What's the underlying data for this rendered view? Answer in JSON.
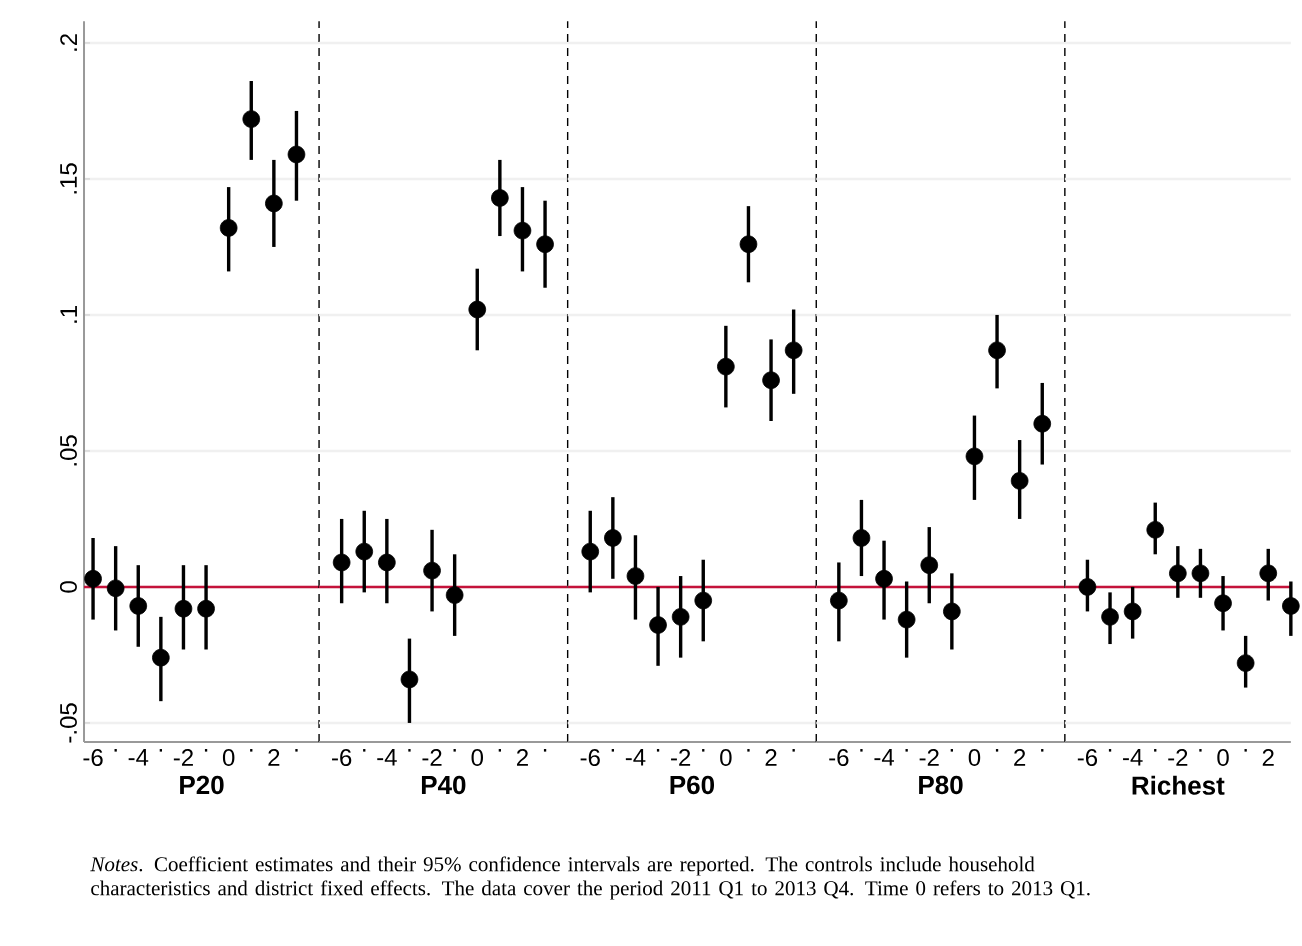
{
  "chart_data": [
    {
      "type": "scatter",
      "xlabel": "P20",
      "x": [
        -6,
        -5,
        -4,
        -3,
        -2,
        -1,
        0,
        1,
        2,
        3
      ],
      "values": [
        0.003,
        -0.0005,
        -0.007,
        -0.026,
        -0.008,
        -0.008,
        0.132,
        0.172,
        0.141,
        0.159
      ],
      "errors": [
        [
          -0.012,
          0.018
        ],
        [
          -0.016,
          0.015
        ],
        [
          -0.022,
          0.008
        ],
        [
          -0.042,
          -0.011
        ],
        [
          -0.023,
          0.008
        ],
        [
          -0.023,
          0.008
        ],
        [
          0.116,
          0.147
        ],
        [
          0.157,
          0.186
        ],
        [
          0.125,
          0.157
        ],
        [
          0.142,
          0.175
        ]
      ],
      "color": "#000000",
      "xlim": [
        -6.4,
        4
      ],
      "ylim": [
        -0.057,
        0.208
      ],
      "xticks": [
        {
          "value": -6,
          "label": "-6"
        },
        {
          "value": -5,
          "label": "."
        },
        {
          "value": -4,
          "label": "-4"
        },
        {
          "value": -3,
          "label": "."
        },
        {
          "value": -2,
          "label": "-2"
        },
        {
          "value": -1,
          "label": "."
        },
        {
          "value": 0,
          "label": "0"
        },
        {
          "value": 1,
          "label": "."
        },
        {
          "value": 2,
          "label": "2"
        },
        {
          "value": 3,
          "label": "."
        }
      ],
      "yticks": [
        {
          "value": -0.05,
          "label": "-.05"
        },
        {
          "value": 0,
          "label": "0"
        },
        {
          "value": 0.05,
          "label": ".05"
        },
        {
          "value": 0.1,
          "label": ".1"
        },
        {
          "value": 0.15,
          "label": ".15"
        },
        {
          "value": 0.2,
          "label": ".2"
        }
      ],
      "grid": "y",
      "ref_lines": [
        {
          "axis": "y",
          "value": 0,
          "color": "#c4123a"
        },
        {
          "axis": "x",
          "value": 4,
          "color": "#000000",
          "line_style": "dashed"
        }
      ],
      "annotations": [
        "*Notes*. Coefficient estimates and their 95% confidence intervals are reported. The controls include household characteristics and district fixed effects. The data cover the period 2011 Q1 to 2013 Q4. Time 0 refers to 2013 Q1."
      ]
    },
    {
      "type": "scatter",
      "xlabel": "P40",
      "x": [
        -6,
        -5,
        -4,
        -3,
        -2,
        -1,
        0,
        1,
        2,
        3
      ],
      "values": [
        0.009,
        0.013,
        0.009,
        -0.034,
        0.006,
        -0.003,
        0.102,
        0.143,
        0.131,
        0.126
      ],
      "errors": [
        [
          -0.006,
          0.025
        ],
        [
          -0.002,
          0.028
        ],
        [
          -0.006,
          0.025
        ],
        [
          -0.05,
          -0.019
        ],
        [
          -0.009,
          0.021
        ],
        [
          -0.018,
          0.012
        ],
        [
          0.087,
          0.117
        ],
        [
          0.129,
          0.157
        ],
        [
          0.116,
          0.147
        ],
        [
          0.11,
          0.142
        ]
      ],
      "color": "#000000",
      "xlim": [
        -7,
        4
      ],
      "ylim": [
        -0.057,
        0.208
      ],
      "xticks": [
        {
          "value": -6,
          "label": "-6"
        },
        {
          "value": -5,
          "label": "."
        },
        {
          "value": -4,
          "label": "-4"
        },
        {
          "value": -3,
          "label": "."
        },
        {
          "value": -2,
          "label": "-2"
        },
        {
          "value": -1,
          "label": "."
        },
        {
          "value": 0,
          "label": "0"
        },
        {
          "value": 1,
          "label": "."
        },
        {
          "value": 2,
          "label": "2"
        },
        {
          "value": 3,
          "label": "."
        }
      ],
      "yticks": [
        {
          "value": -0.05,
          "label": null
        },
        {
          "value": 0,
          "label": null
        },
        {
          "value": 0.05,
          "label": null
        },
        {
          "value": 0.1,
          "label": null
        },
        {
          "value": 0.15,
          "label": null
        },
        {
          "value": 0.2,
          "label": null
        }
      ],
      "grid": "y",
      "tick_labels": "x",
      "ref_lines": [
        {
          "axis": "y",
          "value": 0,
          "color": "#c4123a"
        },
        {
          "axis": "x",
          "value": 4,
          "color": "#000000",
          "line_style": "dashed"
        }
      ]
    },
    {
      "type": "scatter",
      "xlabel": "P60",
      "x": [
        -6,
        -5,
        -4,
        -3,
        -2,
        -1,
        0,
        1,
        2,
        3
      ],
      "values": [
        0.013,
        0.018,
        0.004,
        -0.014,
        -0.011,
        -0.005,
        0.081,
        0.126,
        0.076,
        0.087
      ],
      "errors": [
        [
          -0.002,
          0.028
        ],
        [
          0.003,
          0.033
        ],
        [
          -0.012,
          0.019
        ],
        [
          -0.029,
          0.0
        ],
        [
          -0.026,
          0.004
        ],
        [
          -0.02,
          0.01
        ],
        [
          0.066,
          0.096
        ],
        [
          0.112,
          0.14
        ],
        [
          0.061,
          0.091
        ],
        [
          0.071,
          0.102
        ]
      ],
      "color": "#000000",
      "xlim": [
        -7,
        4
      ],
      "ylim": [
        -0.057,
        0.208
      ],
      "xticks": [
        {
          "value": -6,
          "label": "-6"
        },
        {
          "value": -5,
          "label": "."
        },
        {
          "value": -4,
          "label": "-4"
        },
        {
          "value": -3,
          "label": "."
        },
        {
          "value": -2,
          "label": "-2"
        },
        {
          "value": -1,
          "label": "."
        },
        {
          "value": 0,
          "label": "0"
        },
        {
          "value": 1,
          "label": "."
        },
        {
          "value": 2,
          "label": "2"
        },
        {
          "value": 3,
          "label": "."
        }
      ],
      "yticks": [
        {
          "value": -0.05,
          "label": null
        },
        {
          "value": 0,
          "label": null
        },
        {
          "value": 0.05,
          "label": null
        },
        {
          "value": 0.1,
          "label": null
        },
        {
          "value": 0.15,
          "label": null
        },
        {
          "value": 0.2,
          "label": null
        }
      ],
      "grid": "y",
      "tick_labels": "x",
      "ref_lines": [
        {
          "axis": "y",
          "value": 0,
          "color": "#c4123a"
        },
        {
          "axis": "x",
          "value": 4,
          "color": "#000000",
          "line_style": "dashed"
        }
      ]
    },
    {
      "type": "scatter",
      "xlabel": "P80",
      "x": [
        -6,
        -5,
        -4,
        -3,
        -2,
        -1,
        0,
        1,
        2,
        3
      ],
      "values": [
        -0.005,
        0.018,
        0.003,
        -0.012,
        0.008,
        -0.009,
        0.048,
        0.087,
        0.039,
        0.06
      ],
      "errors": [
        [
          -0.02,
          0.009
        ],
        [
          0.004,
          0.032
        ],
        [
          -0.012,
          0.017
        ],
        [
          -0.026,
          0.002
        ],
        [
          -0.006,
          0.022
        ],
        [
          -0.023,
          0.005
        ],
        [
          0.032,
          0.063
        ],
        [
          0.073,
          0.1
        ],
        [
          0.025,
          0.054
        ],
        [
          0.045,
          0.075
        ]
      ],
      "color": "#000000",
      "xlim": [
        -7,
        4
      ],
      "ylim": [
        -0.057,
        0.208
      ],
      "xticks": [
        {
          "value": -6,
          "label": "-6"
        },
        {
          "value": -5,
          "label": "."
        },
        {
          "value": -4,
          "label": "-4"
        },
        {
          "value": -3,
          "label": "."
        },
        {
          "value": -2,
          "label": "-2"
        },
        {
          "value": -1,
          "label": "."
        },
        {
          "value": 0,
          "label": "0"
        },
        {
          "value": 1,
          "label": "."
        },
        {
          "value": 2,
          "label": "2"
        },
        {
          "value": 3,
          "label": "."
        }
      ],
      "yticks": [
        {
          "value": -0.05,
          "label": null
        },
        {
          "value": 0,
          "label": null
        },
        {
          "value": 0.05,
          "label": null
        },
        {
          "value": 0.1,
          "label": null
        },
        {
          "value": 0.15,
          "label": null
        },
        {
          "value": 0.2,
          "label": null
        }
      ],
      "grid": "y",
      "tick_labels": "x",
      "ref_lines": [
        {
          "axis": "y",
          "value": 0,
          "color": "#c4123a"
        },
        {
          "axis": "x",
          "value": 4,
          "color": "#000000",
          "line_style": "dashed"
        }
      ]
    },
    {
      "type": "scatter",
      "xlabel": "Richest",
      "x": [
        -6,
        -5,
        -4,
        -3,
        -2,
        -1,
        0,
        1,
        2,
        3
      ],
      "values": [
        0.0,
        -0.011,
        -0.009,
        0.021,
        0.005,
        0.005,
        -0.006,
        -0.028,
        0.005,
        -0.007
      ],
      "errors": [
        [
          -0.009,
          0.01
        ],
        [
          -0.021,
          -0.002
        ],
        [
          -0.019,
          0.0
        ],
        [
          0.012,
          0.031
        ],
        [
          -0.004,
          0.015
        ],
        [
          -0.004,
          0.014
        ],
        [
          -0.016,
          0.004
        ],
        [
          -0.037,
          -0.018
        ],
        [
          -0.005,
          0.014
        ],
        [
          -0.018,
          0.002
        ]
      ],
      "color": "#000000",
      "xlim": [
        -7,
        3
      ],
      "ylim": [
        -0.057,
        0.208
      ],
      "xticks": [
        {
          "value": -6,
          "label": "-6"
        },
        {
          "value": -5,
          "label": "."
        },
        {
          "value": -4,
          "label": "-4"
        },
        {
          "value": -3,
          "label": "."
        },
        {
          "value": -2,
          "label": "-2"
        },
        {
          "value": -1,
          "label": "."
        },
        {
          "value": 0,
          "label": "0"
        },
        {
          "value": 1,
          "label": "."
        },
        {
          "value": 2,
          "label": "2"
        }
      ],
      "yticks": [
        {
          "value": -0.05,
          "label": null
        },
        {
          "value": 0,
          "label": null
        },
        {
          "value": 0.05,
          "label": null
        },
        {
          "value": 0.1,
          "label": null
        },
        {
          "value": 0.15,
          "label": null
        },
        {
          "value": 0.2,
          "label": null
        }
      ],
      "grid": "y",
      "tick_labels": "x",
      "ref_lines": [
        {
          "axis": "y",
          "value": 0,
          "color": "#c4123a"
        }
      ]
    }
  ]
}
